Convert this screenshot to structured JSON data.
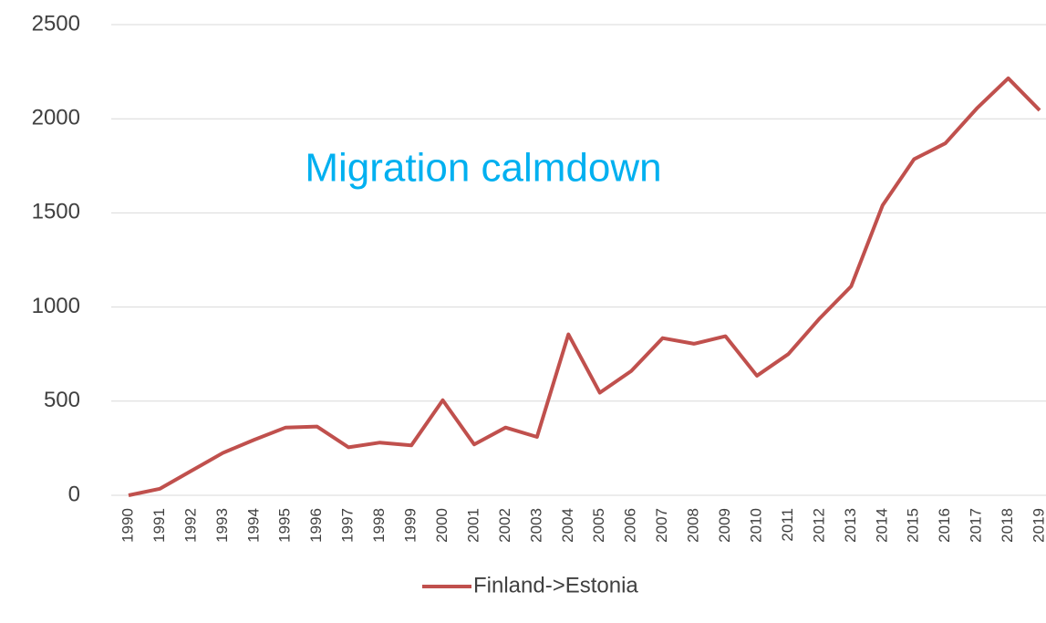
{
  "chart_data": {
    "type": "line",
    "annotation": "Migration calmdown",
    "categories": [
      "1990",
      "1991",
      "1992",
      "1993",
      "1994",
      "1995",
      "1996",
      "1997",
      "1998",
      "1999",
      "2000",
      "2001",
      "2002",
      "2003",
      "2004",
      "2005",
      "2006",
      "2007",
      "2008",
      "2009",
      "2010",
      "2011",
      "2012",
      "2013",
      "2014",
      "2015",
      "2016",
      "2017",
      "2018",
      "2019"
    ],
    "series": [
      {
        "name": "Finland->Estonia",
        "color": "#c0504d",
        "values": [
          0,
          35,
          130,
          225,
          295,
          360,
          365,
          255,
          280,
          265,
          505,
          270,
          360,
          310,
          855,
          545,
          660,
          835,
          805,
          845,
          635,
          750,
          940,
          1110,
          1540,
          1785,
          1870,
          2055,
          2215,
          2045
        ]
      }
    ],
    "ylim": [
      0,
      2500
    ],
    "yticks": [
      0,
      500,
      1000,
      1500,
      2000,
      2500
    ],
    "grid": true,
    "legend": "bottom"
  }
}
